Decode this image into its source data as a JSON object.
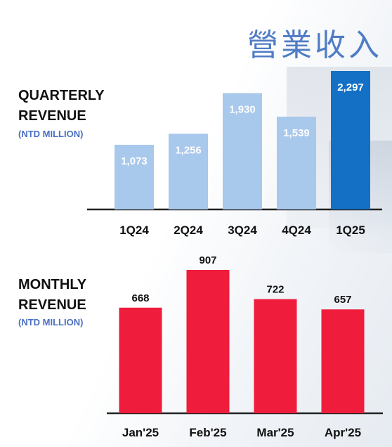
{
  "page": {
    "title": "營業收入"
  },
  "quarterly": {
    "title_line1": "QUARTERLY",
    "title_line2": "REVENUE",
    "unit": "(NTD MILLION)"
  },
  "monthly": {
    "title_line1": "MONTHLY",
    "title_line2": "REVENUE",
    "unit": "(NTD MILLION)"
  },
  "colors": {
    "title_blue": "#4f7cc5",
    "quarter_bar": "#a8c8ec",
    "quarter_bar_highlight": "#1470c4",
    "month_bar": "#ef1c3c",
    "unit_text": "#4a6fc2"
  },
  "chart_data": [
    {
      "type": "bar",
      "title": "QUARTERLY REVENUE",
      "ylabel": "(NTD MILLION)",
      "categories": [
        "1Q24",
        "2Q24",
        "3Q24",
        "4Q24",
        "1Q25"
      ],
      "values": [
        1073,
        1256,
        1930,
        1539,
        2297
      ],
      "value_labels": [
        "1,073",
        "1,256",
        "1,930",
        "1,539",
        "2,297"
      ],
      "highlight_index": 4,
      "ylim": [
        0,
        2297
      ],
      "grid": false,
      "legend": "none"
    },
    {
      "type": "bar",
      "title": "MONTHLY REVENUE",
      "ylabel": "(NTD MILLION)",
      "categories": [
        "Jan'25",
        "Feb'25",
        "Mar'25",
        "Apr'25"
      ],
      "values": [
        668,
        907,
        722,
        657
      ],
      "value_labels": [
        "668",
        "907",
        "722",
        "657"
      ],
      "ylim": [
        0,
        907
      ],
      "grid": false,
      "legend": "none"
    }
  ]
}
